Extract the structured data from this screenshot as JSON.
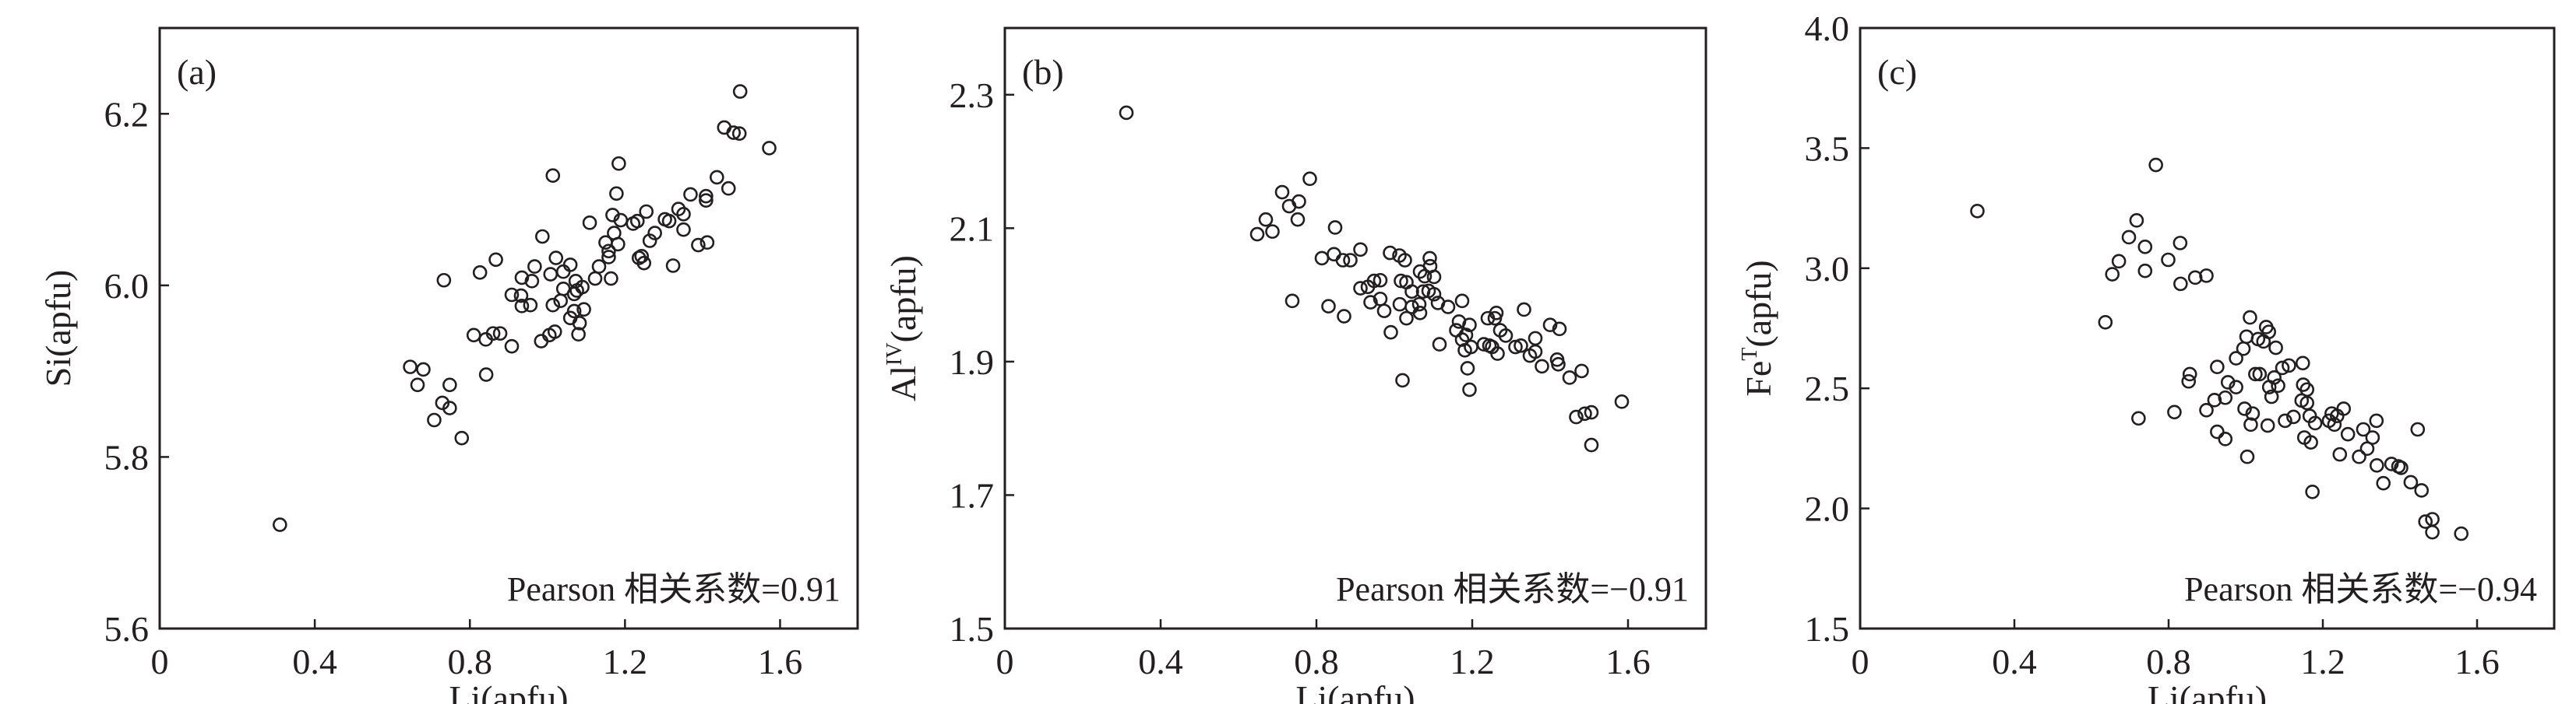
{
  "chart_data": [
    {
      "type": "scatter",
      "panel_label": "(a)",
      "xlabel": "Li(apfu)",
      "ylabel_parts": [
        "Si",
        "",
        "(apfu)"
      ],
      "annotation": "Pearson 相关系数=0.91",
      "xlim": [
        0,
        1.8
      ],
      "ylim": [
        5.6,
        6.3
      ],
      "xticks": [
        0,
        0.4,
        0.8,
        1.2,
        1.6
      ],
      "xtick_labels": [
        "0",
        "0.4",
        "0.8",
        "1.2",
        "1.6"
      ],
      "yticks": [
        5.6,
        5.8,
        6.0,
        6.2
      ],
      "ytick_labels": [
        "5.6",
        "5.8",
        "6.0",
        "6.2"
      ],
      "grid": false,
      "points": [
        [
          0.31,
          5.721
        ],
        [
          0.646,
          5.905
        ],
        [
          0.68,
          5.902
        ],
        [
          0.665,
          5.884
        ],
        [
          0.748,
          5.884
        ],
        [
          0.729,
          5.863
        ],
        [
          0.748,
          5.857
        ],
        [
          0.708,
          5.843
        ],
        [
          0.779,
          5.822
        ],
        [
          0.733,
          6.006
        ],
        [
          0.826,
          6.015
        ],
        [
          0.867,
          6.03
        ],
        [
          0.81,
          5.942
        ],
        [
          0.841,
          5.937
        ],
        [
          0.86,
          5.944
        ],
        [
          0.878,
          5.944
        ],
        [
          0.842,
          5.896
        ],
        [
          0.908,
          5.929
        ],
        [
          0.908,
          5.989
        ],
        [
          0.932,
          5.988
        ],
        [
          0.934,
          5.976
        ],
        [
          0.956,
          5.977
        ],
        [
          0.934,
          6.009
        ],
        [
          0.96,
          6.005
        ],
        [
          0.967,
          6.022
        ],
        [
          0.987,
          6.057
        ],
        [
          1.014,
          6.128
        ],
        [
          0.984,
          5.935
        ],
        [
          1.005,
          5.942
        ],
        [
          1.019,
          5.946
        ],
        [
          1.008,
          6.013
        ],
        [
          1.022,
          6.032
        ],
        [
          1.014,
          5.977
        ],
        [
          1.034,
          5.982
        ],
        [
          1.041,
          6.016
        ],
        [
          1.059,
          6.024
        ],
        [
          1.041,
          5.996
        ],
        [
          1.059,
          5.962
        ],
        [
          1.069,
          5.97
        ],
        [
          1.069,
          5.99
        ],
        [
          1.073,
          6.005
        ],
        [
          1.08,
          5.943
        ],
        [
          1.083,
          5.956
        ],
        [
          1.076,
          5.994
        ],
        [
          1.09,
          5.998
        ],
        [
          1.094,
          5.972
        ],
        [
          1.109,
          6.073
        ],
        [
          1.123,
          6.008
        ],
        [
          1.133,
          6.022
        ],
        [
          1.164,
          6.008
        ],
        [
          1.158,
          6.033
        ],
        [
          1.158,
          6.04
        ],
        [
          1.15,
          6.05
        ],
        [
          1.168,
          6.082
        ],
        [
          1.172,
          6.061
        ],
        [
          1.182,
          6.048
        ],
        [
          1.178,
          6.107
        ],
        [
          1.184,
          6.142
        ],
        [
          1.189,
          6.076
        ],
        [
          1.221,
          6.072
        ],
        [
          1.232,
          6.075
        ],
        [
          1.236,
          6.032
        ],
        [
          1.243,
          6.034
        ],
        [
          1.249,
          6.026
        ],
        [
          1.255,
          6.086
        ],
        [
          1.264,
          6.052
        ],
        [
          1.277,
          6.061
        ],
        [
          1.303,
          6.077
        ],
        [
          1.314,
          6.075
        ],
        [
          1.324,
          6.023
        ],
        [
          1.338,
          6.089
        ],
        [
          1.351,
          6.083
        ],
        [
          1.351,
          6.065
        ],
        [
          1.369,
          6.106
        ],
        [
          1.389,
          6.047
        ],
        [
          1.409,
          6.104
        ],
        [
          1.409,
          6.099
        ],
        [
          1.412,
          6.05
        ],
        [
          1.437,
          6.126
        ],
        [
          1.467,
          6.113
        ],
        [
          1.456,
          6.184
        ],
        [
          1.48,
          6.178
        ],
        [
          1.495,
          6.177
        ],
        [
          1.497,
          6.226
        ],
        [
          1.572,
          6.16
        ]
      ]
    },
    {
      "type": "scatter",
      "panel_label": "(b)",
      "xlabel": "Li(apfu)",
      "ylabel_parts": [
        "Al",
        "IV",
        "(apfu)"
      ],
      "annotation": "Pearson 相关系数=−0.91",
      "xlim": [
        0,
        1.8
      ],
      "ylim": [
        1.5,
        2.4
      ],
      "xticks": [
        0,
        0.4,
        0.8,
        1.2,
        1.6
      ],
      "xtick_labels": [
        "0",
        "0.4",
        "0.8",
        "1.2",
        "1.6"
      ],
      "yticks": [
        1.5,
        1.7,
        1.9,
        2.1,
        2.3
      ],
      "ytick_labels": [
        "1.5",
        "1.7",
        "1.9",
        "2.1",
        "2.3"
      ],
      "grid": false,
      "points": [
        [
          0.312,
          2.273
        ],
        [
          0.648,
          2.091
        ],
        [
          0.67,
          2.113
        ],
        [
          0.687,
          2.095
        ],
        [
          0.712,
          2.154
        ],
        [
          0.73,
          2.133
        ],
        [
          0.755,
          2.14
        ],
        [
          0.752,
          2.113
        ],
        [
          0.783,
          2.174
        ],
        [
          0.738,
          1.991
        ],
        [
          0.814,
          2.055
        ],
        [
          0.848,
          2.101
        ],
        [
          0.845,
          2.061
        ],
        [
          0.868,
          2.052
        ],
        [
          0.887,
          2.052
        ],
        [
          0.913,
          2.068
        ],
        [
          0.831,
          1.983
        ],
        [
          0.871,
          1.968
        ],
        [
          0.913,
          2.01
        ],
        [
          0.932,
          2.012
        ],
        [
          0.948,
          2.021
        ],
        [
          0.964,
          2.022
        ],
        [
          0.939,
          1.989
        ],
        [
          0.964,
          1.994
        ],
        [
          0.974,
          1.976
        ],
        [
          0.991,
          1.944
        ],
        [
          0.989,
          2.063
        ],
        [
          1.013,
          2.059
        ],
        [
          1.027,
          2.052
        ],
        [
          1.017,
          2.021
        ],
        [
          1.031,
          2.019
        ],
        [
          1.014,
          1.986
        ],
        [
          1.031,
          1.965
        ],
        [
          1.021,
          1.872
        ],
        [
          1.045,
          2.005
        ],
        [
          1.045,
          1.982
        ],
        [
          1.064,
          1.986
        ],
        [
          1.066,
          1.973
        ],
        [
          1.066,
          2.035
        ],
        [
          1.078,
          2.028
        ],
        [
          1.074,
          2.005
        ],
        [
          1.088,
          2.006
        ],
        [
          1.091,
          2.055
        ],
        [
          1.092,
          2.043
        ],
        [
          1.102,
          2.027
        ],
        [
          1.102,
          2.001
        ],
        [
          1.112,
          1.988
        ],
        [
          1.116,
          1.926
        ],
        [
          1.138,
          1.982
        ],
        [
          1.159,
          1.947
        ],
        [
          1.166,
          1.96
        ],
        [
          1.174,
          1.991
        ],
        [
          1.174,
          1.933
        ],
        [
          1.181,
          1.917
        ],
        [
          1.184,
          1.94
        ],
        [
          1.193,
          1.955
        ],
        [
          1.188,
          1.89
        ],
        [
          1.193,
          1.858
        ],
        [
          1.197,
          1.922
        ],
        [
          1.23,
          1.926
        ],
        [
          1.24,
          1.965
        ],
        [
          1.244,
          1.924
        ],
        [
          1.251,
          1.922
        ],
        [
          1.258,
          1.965
        ],
        [
          1.262,
          1.973
        ],
        [
          1.265,
          1.912
        ],
        [
          1.272,
          1.947
        ],
        [
          1.286,
          1.939
        ],
        [
          1.311,
          1.922
        ],
        [
          1.325,
          1.924
        ],
        [
          1.333,
          1.978
        ],
        [
          1.348,
          1.909
        ],
        [
          1.362,
          1.935
        ],
        [
          1.362,
          1.915
        ],
        [
          1.379,
          1.893
        ],
        [
          1.4,
          1.955
        ],
        [
          1.418,
          1.903
        ],
        [
          1.421,
          1.896
        ],
        [
          1.424,
          1.949
        ],
        [
          1.45,
          1.876
        ],
        [
          1.481,
          1.886
        ],
        [
          1.467,
          1.817
        ],
        [
          1.489,
          1.822
        ],
        [
          1.506,
          1.824
        ],
        [
          1.506,
          1.775
        ],
        [
          1.584,
          1.84
        ]
      ]
    },
    {
      "type": "scatter",
      "panel_label": "(c)",
      "xlabel": "Li(apfu)",
      "ylabel_parts": [
        "Fe",
        "T",
        "(apfu)"
      ],
      "annotation": "Pearson 相关系数=−0.94",
      "xlim": [
        0,
        1.8
      ],
      "ylim": [
        1.5,
        4.0
      ],
      "xticks": [
        0,
        0.4,
        0.8,
        1.2,
        1.6
      ],
      "xtick_labels": [
        "0",
        "0.4",
        "0.8",
        "1.2",
        "1.6"
      ],
      "yticks": [
        1.5,
        2.0,
        2.5,
        3.0,
        3.5,
        4.0
      ],
      "ytick_labels": [
        "1.5",
        "2.0",
        "2.5",
        "3.0",
        "3.5",
        "4.0"
      ],
      "grid": false,
      "points": [
        [
          0.304,
          3.238
        ],
        [
          0.636,
          2.775
        ],
        [
          0.654,
          2.975
        ],
        [
          0.671,
          3.029
        ],
        [
          0.697,
          3.129
        ],
        [
          0.717,
          3.199
        ],
        [
          0.739,
          3.089
        ],
        [
          0.739,
          2.989
        ],
        [
          0.722,
          2.375
        ],
        [
          0.767,
          3.43
        ],
        [
          0.799,
          3.035
        ],
        [
          0.83,
          3.105
        ],
        [
          0.831,
          2.935
        ],
        [
          0.869,
          2.961
        ],
        [
          0.898,
          2.969
        ],
        [
          0.815,
          2.401
        ],
        [
          0.852,
          2.529
        ],
        [
          0.855,
          2.559
        ],
        [
          0.898,
          2.409
        ],
        [
          0.919,
          2.451
        ],
        [
          0.926,
          2.319
        ],
        [
          0.926,
          2.589
        ],
        [
          0.947,
          2.461
        ],
        [
          0.947,
          2.289
        ],
        [
          0.954,
          2.525
        ],
        [
          0.975,
          2.505
        ],
        [
          0.975,
          2.625
        ],
        [
          0.994,
          2.665
        ],
        [
          0.997,
          2.415
        ],
        [
          1.002,
          2.715
        ],
        [
          1.004,
          2.215
        ],
        [
          1.011,
          2.795
        ],
        [
          1.018,
          2.395
        ],
        [
          1.013,
          2.349
        ],
        [
          1.025,
          2.559
        ],
        [
          1.036,
          2.559
        ],
        [
          1.032,
          2.705
        ],
        [
          1.046,
          2.695
        ],
        [
          1.053,
          2.755
        ],
        [
          1.06,
          2.735
        ],
        [
          1.057,
          2.345
        ],
        [
          1.061,
          2.505
        ],
        [
          1.067,
          2.465
        ],
        [
          1.074,
          2.545
        ],
        [
          1.078,
          2.669
        ],
        [
          1.084,
          2.511
        ],
        [
          1.095,
          2.585
        ],
        [
          1.102,
          2.365
        ],
        [
          1.112,
          2.595
        ],
        [
          1.124,
          2.381
        ],
        [
          1.145,
          2.449
        ],
        [
          1.148,
          2.605
        ],
        [
          1.149,
          2.515
        ],
        [
          1.152,
          2.295
        ],
        [
          1.159,
          2.495
        ],
        [
          1.159,
          2.439
        ],
        [
          1.166,
          2.385
        ],
        [
          1.169,
          2.275
        ],
        [
          1.173,
          2.069
        ],
        [
          1.18,
          2.355
        ],
        [
          1.216,
          2.365
        ],
        [
          1.223,
          2.395
        ],
        [
          1.23,
          2.349
        ],
        [
          1.237,
          2.385
        ],
        [
          1.244,
          2.225
        ],
        [
          1.254,
          2.415
        ],
        [
          1.265,
          2.309
        ],
        [
          1.294,
          2.215
        ],
        [
          1.305,
          2.329
        ],
        [
          1.315,
          2.249
        ],
        [
          1.329,
          2.295
        ],
        [
          1.339,
          2.365
        ],
        [
          1.34,
          2.179
        ],
        [
          1.357,
          2.105
        ],
        [
          1.378,
          2.185
        ],
        [
          1.396,
          2.175
        ],
        [
          1.403,
          2.169
        ],
        [
          1.428,
          2.109
        ],
        [
          1.446,
          2.329
        ],
        [
          1.456,
          2.075
        ],
        [
          1.466,
          1.945
        ],
        [
          1.484,
          1.955
        ],
        [
          1.484,
          1.901
        ],
        [
          1.559,
          1.895
        ]
      ]
    }
  ]
}
